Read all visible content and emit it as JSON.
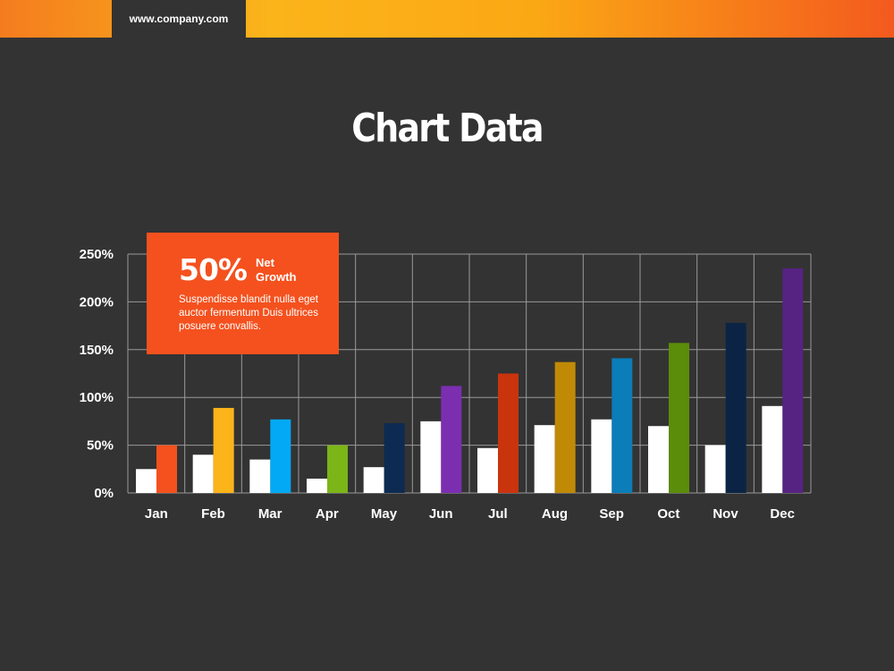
{
  "header": {
    "url": "www.company.com"
  },
  "title": "Chart Data",
  "callout": {
    "big_value": "50%",
    "label": "Net Growth",
    "body": "Suspendisse blandit nulla eget auctor fermentum Duis ultrices posuere convallis."
  },
  "colors": {
    "background": "#333333",
    "accent": "#f4511e",
    "grid": "#9a9a9a",
    "baseline_bar": "#ffffff",
    "month_bars": [
      "#f4511e",
      "#fbb41a",
      "#03a9f4",
      "#7cb518",
      "#0d2b52",
      "#7b2fb0",
      "#c9340d",
      "#c08a07",
      "#0b7db8",
      "#5b8c0a",
      "#0b2446",
      "#572383"
    ]
  },
  "chart_data": {
    "type": "bar",
    "categories": [
      "Jan",
      "Feb",
      "Mar",
      "Apr",
      "May",
      "Jun",
      "Jul",
      "Aug",
      "Sep",
      "Oct",
      "Nov",
      "Dec"
    ],
    "series": [
      {
        "values": [
          25,
          40,
          35,
          15,
          27,
          75,
          47,
          71,
          77,
          70,
          50,
          91
        ]
      },
      {
        "values": [
          50,
          89,
          77,
          50,
          73,
          112,
          125,
          137,
          141,
          157,
          178,
          235
        ]
      }
    ],
    "y_ticks": [
      "0%",
      "50%",
      "100%",
      "150%",
      "200%",
      "250%"
    ],
    "ylim": [
      0,
      250
    ],
    "grid": true,
    "legend": "none"
  }
}
